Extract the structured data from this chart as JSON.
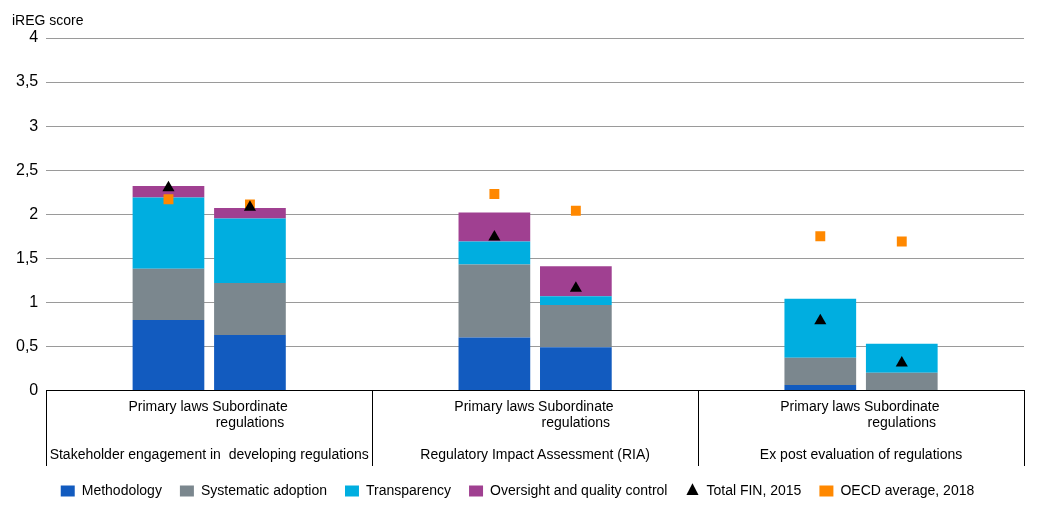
{
  "chart_data": {
    "type": "bar",
    "stacked": true,
    "ylabel": "iREG score",
    "categories": [
      null,
      "Primary laws",
      "Subordinate regulations",
      null,
      null,
      "Primary laws",
      "Subordinate regulations",
      null,
      null,
      "Primary laws",
      "Subordinate regulations",
      null
    ],
    "series": [
      {
        "name": "Methodology",
        "color": "#125bbf",
        "values": [
          null,
          0.8,
          0.63,
          null,
          null,
          0.6,
          0.49,
          null,
          null,
          0.06,
          0,
          null
        ]
      },
      {
        "name": "Systematic adoption",
        "color": "#7b878e",
        "values": [
          null,
          0.58,
          0.59,
          null,
          null,
          0.83,
          0.48,
          null,
          null,
          0.31,
          0.2,
          null
        ]
      },
      {
        "name": "Transparency",
        "color": "#00aee0",
        "values": [
          null,
          0.81,
          0.73,
          null,
          null,
          0.26,
          0.1,
          null,
          null,
          0.67,
          0.33,
          null
        ]
      },
      {
        "name": "Oversight and quality control",
        "color": "#a04091",
        "values": [
          null,
          0.13,
          0.12,
          null,
          null,
          0.33,
          0.34,
          null,
          null,
          0,
          0,
          null
        ]
      },
      {
        "name": "Total FIN, 2015",
        "type": "scatter",
        "marker": "triangle",
        "color": "#000000",
        "values": [
          null,
          2.3,
          2.08,
          null,
          null,
          1.74,
          1.16,
          null,
          null,
          0.79,
          0.31,
          null
        ]
      },
      {
        "name": "OECD average, 2018",
        "type": "scatter",
        "marker": "square",
        "color": "#ff8800",
        "values": [
          null,
          2.17,
          2.11,
          null,
          null,
          2.23,
          2.04,
          null,
          null,
          1.75,
          1.69,
          null
        ]
      }
    ],
    "ylim": [
      0,
      4
    ],
    "yticks": [
      0,
      {
        "value": 0.5,
        "label": "0,5"
      },
      1,
      {
        "value": 1.5,
        "label": "1,5"
      },
      2,
      {
        "value": 2.5,
        "label": "2,5"
      },
      3,
      {
        "value": 3.5,
        "label": "3,5"
      },
      4
    ],
    "grid": "y",
    "legend": "bottom",
    "annotations": [
      "Stakeholder engagement in  developing regulations",
      "Regulatory Impact Assessment (RIA)",
      "Ex post evaluation of regulations"
    ]
  }
}
